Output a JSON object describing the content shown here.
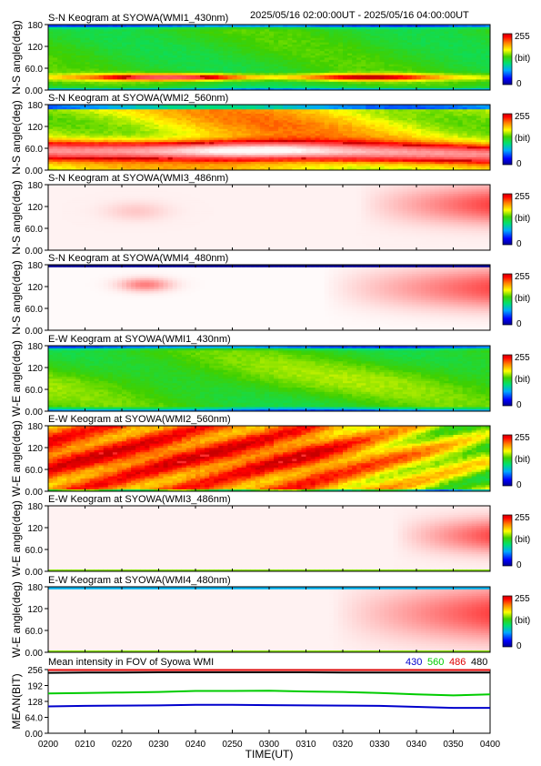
{
  "header": {
    "date_range": "2025/05/16 02:00:00UT - 2025/05/16 04:00:00UT"
  },
  "colorbar": {
    "max_label": "255",
    "unit_label": "(bit)",
    "min_label": "0"
  },
  "x_ticks": [
    "0200",
    "0210",
    "0220",
    "0230",
    "0240",
    "0250",
    "0300",
    "0310",
    "0320",
    "0330",
    "0340",
    "0350",
    "0400"
  ],
  "x_axis_label": "TIME(UT)",
  "colors": {
    "c430": "#0000cc",
    "c560": "#00cc00",
    "c486": "#dd0000",
    "c480": "#000000"
  },
  "chart_data": [
    {
      "type": "heatmap",
      "title": "S-N Keogram at SYOWA(WMI1_430nm)",
      "ylabel": "N-S angle(deg)",
      "yticks": [
        "0.00",
        "60.0",
        "120",
        "180"
      ],
      "ylim": [
        0,
        180
      ],
      "xlim": [
        "0200",
        "0400"
      ],
      "colorscale": "rainbow",
      "zlim": [
        0,
        255
      ],
      "pattern": "green field ~100-140 bit; red/white aurora band near 30-40 deg brightest 0215-0240; dark edges top and bottom"
    },
    {
      "type": "heatmap",
      "title": "S-N Keogram at SYOWA(WMI2_560nm)",
      "ylabel": "N-S angle(deg)",
      "yticks": [
        "0.00",
        "60.0",
        "120",
        "180"
      ],
      "ylim": [
        0,
        180
      ],
      "xlim": [
        "0200",
        "0400"
      ],
      "colorscale": "rainbow",
      "zlim": [
        0,
        255
      ],
      "pattern": "yellow-green to orange field; red and white band 20-60 deg, saturating 0230-0300, weakening and lowering after 0310"
    },
    {
      "type": "heatmap",
      "title": "S-N Keogram at SYOWA(WMI3_486nm)",
      "ylabel": "N-S angle(deg)",
      "yticks": [
        "0.00",
        "60.0",
        "120",
        "180"
      ],
      "ylim": [
        0,
        180
      ],
      "xlim": [
        "0200",
        "0400"
      ],
      "colorscale": "rainbow",
      "zlim": [
        0,
        255
      ],
      "pattern": "near-saturated white/pink; pink patch 90-170 deg after 0335"
    },
    {
      "type": "heatmap",
      "title": "S-N Keogram at SYOWA(WMI4_480nm)",
      "ylabel": "N-S angle(deg)",
      "yticks": [
        "0.00",
        "60.0",
        "120",
        "180"
      ],
      "ylim": [
        0,
        180
      ],
      "xlim": [
        "0200",
        "0400"
      ],
      "colorscale": "rainbow",
      "zlim": [
        0,
        255
      ],
      "pattern": "near-saturated white; pink patch 110-140 deg around 0222-0232 and 80-160 deg after 0325"
    },
    {
      "type": "heatmap",
      "title": "E-W Keogram at SYOWA(WMI1_430nm)",
      "ylabel": "W-E angle(deg)",
      "yticks": [
        "0.00",
        "60.0",
        "120",
        "180"
      ],
      "ylim": [
        0,
        180
      ],
      "xlim": [
        "0200",
        "0400"
      ],
      "colorscale": "rainbow",
      "zlim": [
        0,
        255
      ],
      "pattern": "uniform green ~110-130 bit, slightly brighter center, blue edges"
    },
    {
      "type": "heatmap",
      "title": "E-W Keogram at SYOWA(WMI2_560nm)",
      "ylabel": "W-E angle(deg)",
      "yticks": [
        "0.00",
        "60.0",
        "120",
        "180"
      ],
      "ylim": [
        0,
        180
      ],
      "xlim": [
        "0200",
        "0400"
      ],
      "colorscale": "rainbow",
      "zlim": [
        0,
        255
      ],
      "pattern": "orange/red field with diagonal red streaks 0200-0310, fading to yellow-green after 0320"
    },
    {
      "type": "heatmap",
      "title": "E-W Keogram at SYOWA(WMI3_486nm)",
      "ylabel": "W-E angle(deg)",
      "yticks": [
        "0.00",
        "60.0",
        "120",
        "180"
      ],
      "ylim": [
        0,
        180
      ],
      "xlim": [
        "0200",
        "0400"
      ],
      "colorscale": "rainbow",
      "zlim": [
        0,
        255
      ],
      "pattern": "near-saturated white; pink patch 60-140 deg after 0340"
    },
    {
      "type": "heatmap",
      "title": "E-W Keogram at SYOWA(WMI4_480nm)",
      "ylabel": "W-E angle(deg)",
      "yticks": [
        "0.00",
        "60.0",
        "120",
        "180"
      ],
      "ylim": [
        0,
        180
      ],
      "xlim": [
        "0200",
        "0400"
      ],
      "colorscale": "rainbow",
      "zlim": [
        0,
        255
      ],
      "pattern": "near-saturated white; pink region 20-170 deg after 0330"
    },
    {
      "type": "line",
      "title": "Mean intensity in FOV of Syowa WMI",
      "ylabel": "MEAN(BIT)",
      "xlabel": "TIME(UT)",
      "yticks": [
        "0.00",
        "64.0",
        "128",
        "192",
        "256"
      ],
      "ylim": [
        0,
        256
      ],
      "xlim": [
        "0200",
        "0400"
      ],
      "legend_position": "top-right",
      "x": [
        "0200",
        "0210",
        "0220",
        "0230",
        "0240",
        "0250",
        "0300",
        "0310",
        "0320",
        "0330",
        "0340",
        "0350",
        "0400"
      ],
      "series": [
        {
          "name": "430",
          "color": "#0000cc",
          "values": [
            108,
            110,
            111,
            112,
            114,
            114,
            113,
            112,
            111,
            110,
            106,
            102,
            102
          ]
        },
        {
          "name": "560",
          "color": "#00cc00",
          "values": [
            160,
            162,
            164,
            166,
            170,
            170,
            171,
            168,
            166,
            162,
            156,
            152,
            156
          ]
        },
        {
          "name": "486",
          "color": "#dd0000",
          "values": [
            254,
            254,
            254,
            254,
            254,
            254,
            254,
            254,
            254,
            254,
            254,
            254,
            254
          ]
        },
        {
          "name": "480",
          "color": "#000000",
          "values": [
            243,
            244,
            244,
            245,
            245,
            245,
            245,
            245,
            244,
            244,
            244,
            244,
            244
          ]
        }
      ]
    }
  ]
}
